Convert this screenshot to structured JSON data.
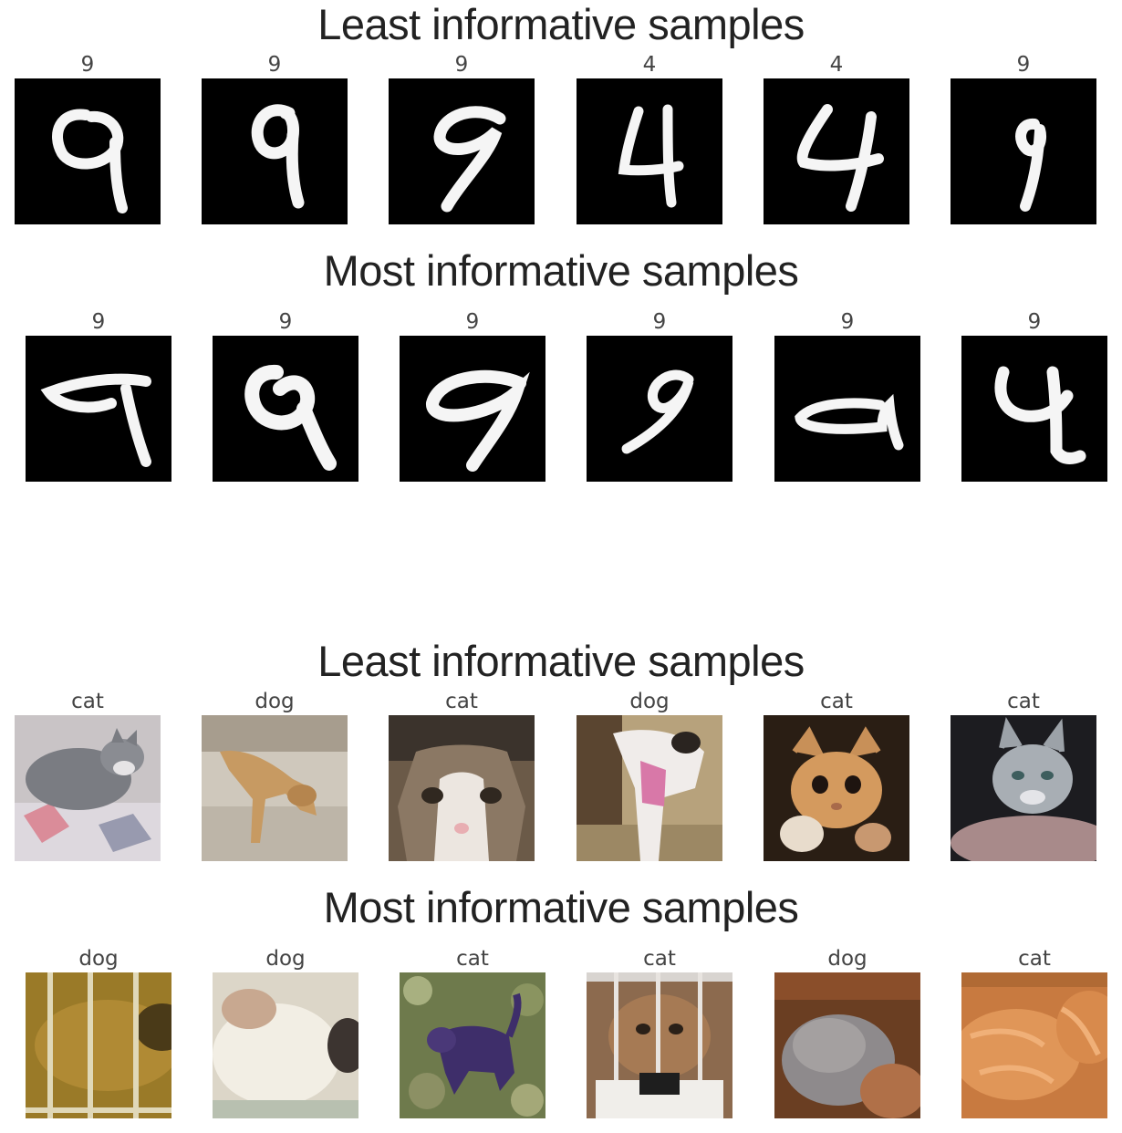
{
  "groups": [
    {
      "dataset": "mnist",
      "sections": [
        {
          "title": "Least informative samples",
          "samples": [
            {
              "label": "9",
              "image": "digit-9-loop"
            },
            {
              "label": "9",
              "image": "digit-9-narrow"
            },
            {
              "label": "9",
              "image": "digit-9-slanted"
            },
            {
              "label": "4",
              "image": "digit-4-closed"
            },
            {
              "label": "4",
              "image": "digit-4-open"
            },
            {
              "label": "9",
              "image": "digit-9-thin"
            }
          ]
        },
        {
          "title": "Most informative samples",
          "samples": [
            {
              "label": "9",
              "image": "digit-9-flat-top"
            },
            {
              "label": "9",
              "image": "digit-9-heavy"
            },
            {
              "label": "9",
              "image": "digit-9-wide-loop"
            },
            {
              "label": "9",
              "image": "digit-9-italic"
            },
            {
              "label": "9",
              "image": "digit-9-open-a"
            },
            {
              "label": "9",
              "image": "digit-9-like-4"
            }
          ]
        }
      ]
    },
    {
      "dataset": "cifar",
      "sections": [
        {
          "title": "Least informative samples",
          "samples": [
            {
              "label": "cat",
              "image": "grey-cat-on-blanket"
            },
            {
              "label": "dog",
              "image": "tan-dog-walking"
            },
            {
              "label": "cat",
              "image": "calico-cat-face"
            },
            {
              "label": "dog",
              "image": "dog-with-pink-tongue"
            },
            {
              "label": "cat",
              "image": "orange-kitten"
            },
            {
              "label": "cat",
              "image": "grey-cat-in-dark"
            }
          ]
        },
        {
          "title": "Most informative samples",
          "samples": [
            {
              "label": "dog",
              "image": "dog-behind-bars"
            },
            {
              "label": "dog",
              "image": "blurry-white-dog"
            },
            {
              "label": "cat",
              "image": "dark-cat-in-grass"
            },
            {
              "label": "cat",
              "image": "cat-in-cage"
            },
            {
              "label": "dog",
              "image": "grey-fluffy-dog"
            },
            {
              "label": "cat",
              "image": "orange-cat-closeup"
            }
          ]
        }
      ]
    }
  ]
}
